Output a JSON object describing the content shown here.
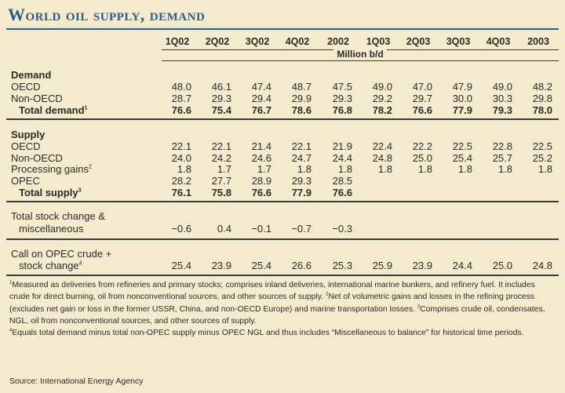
{
  "title": "World oil supply, demand",
  "unit": "Million b/d",
  "columns": [
    "1Q02",
    "2Q02",
    "3Q02",
    "4Q02",
    "2002",
    "1Q03",
    "2Q03",
    "3Q03",
    "4Q03",
    "2003"
  ],
  "demand": {
    "heading": "Demand",
    "oecd": {
      "label": "OECD",
      "values": [
        "48.0",
        "46.1",
        "47.4",
        "48.7",
        "47.5",
        "49.0",
        "47.0",
        "47.9",
        "49.0",
        "48.2"
      ]
    },
    "non_oecd": {
      "label": "Non-OECD",
      "values": [
        "28.7",
        "29.3",
        "29.4",
        "29.9",
        "29.3",
        "29.2",
        "29.7",
        "30.0",
        "30.3",
        "29.8"
      ]
    },
    "total": {
      "label": "Total demand",
      "sup": "1",
      "values": [
        "76.6",
        "75.4",
        "76.7",
        "78.6",
        "76.8",
        "78.2",
        "76.6",
        "77.9",
        "79.3",
        "78.0"
      ]
    }
  },
  "supply": {
    "heading": "Supply",
    "oecd": {
      "label": "OECD",
      "values": [
        "22.1",
        "22.1",
        "21.4",
        "22.1",
        "21.9",
        "22.4",
        "22.2",
        "22.5",
        "22.8",
        "22.5"
      ]
    },
    "non_oecd": {
      "label": "Non-OECD",
      "values": [
        "24.0",
        "24.2",
        "24.6",
        "24.7",
        "24.4",
        "24.8",
        "25.0",
        "25.4",
        "25.7",
        "25.2"
      ]
    },
    "processing_gains": {
      "label": "Processing gains",
      "sup": "2",
      "values": [
        "1.8",
        "1.7",
        "1.7",
        "1.8",
        "1.8",
        "1.8",
        "1.8",
        "1.8",
        "1.8",
        "1.8"
      ]
    },
    "opec": {
      "label": "OPEC",
      "values": [
        "28.2",
        "27.7",
        "28.9",
        "29.3",
        "28.5",
        "",
        "",
        "",
        "",
        ""
      ]
    },
    "total": {
      "label": "Total supply",
      "sup": "3",
      "values": [
        "76.1",
        "75.8",
        "76.6",
        "77.9",
        "76.6",
        "",
        "",
        "",
        "",
        ""
      ]
    }
  },
  "stock_change": {
    "label_line1": "Total stock change &",
    "label_line2": "miscellaneous",
    "values": [
      "−0.6",
      "0.4",
      "−0.1",
      "−0.7",
      "−0.3",
      "",
      "",
      "",
      "",
      ""
    ]
  },
  "call_on_opec": {
    "label_line1": "Call on OPEC crude +",
    "label_line2": "stock change",
    "sup": "4",
    "values": [
      "25.4",
      "23.9",
      "25.4",
      "26.6",
      "25.3",
      "25.9",
      "23.9",
      "24.4",
      "25.0",
      "24.8"
    ]
  },
  "footnotes": {
    "n1_mark": "1",
    "n1_text": "Measured as deliveries from refineries and primary stocks; comprises inland deliveries, international marine bunkers, and refinery fuel. It includes crude for direct burning, oil from nonconventional sources, and other sources of supply.",
    "n2_mark": "2",
    "n2_text": "Net of volumetric gains and losses in the refining process (excludes net gain or loss in the former USSR, China, and non-OECD Europe) and marine transportation losses.",
    "n3_mark": "3",
    "n3_text": "Comprises crude oil, condensates, NGL, oil from nonconventional sources, and other sources of supply.",
    "n4_mark": "4",
    "n4_text": "Equals total demand minus total non-OPEC supply minus OPEC NGL and thus includes “Miscellaneous to balance” for historical time periods."
  },
  "source": "Source: International Energy Agency"
}
